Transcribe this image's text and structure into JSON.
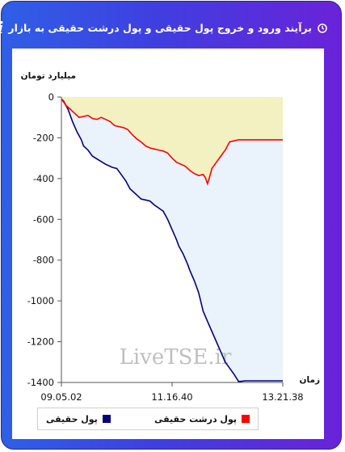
{
  "header": {
    "title": "برآیند ورود و خروج پول حقیقی و پول درشت حقیقی به بازار",
    "info_icon": "i"
  },
  "chart_data": {
    "type": "area",
    "ylabel": "میلیارد تومان",
    "xlabel": "زمان",
    "watermark": "LiveTSE.ir",
    "ylim": [
      -1400,
      0
    ],
    "y_ticks": [
      0,
      -200,
      -400,
      -600,
      -800,
      -1000,
      -1200,
      -1400
    ],
    "x_ticks": [
      "09.05.02",
      "11.16.40",
      "13.21.38"
    ],
    "grid": false,
    "legend_position": "bottom",
    "series": [
      {
        "name": "پول حقیقی",
        "color": "#000080",
        "fill": "#eaf3fb",
        "x": [
          0,
          0.01,
          0.03,
          0.05,
          0.07,
          0.09,
          0.1,
          0.12,
          0.14,
          0.17,
          0.2,
          0.23,
          0.25,
          0.27,
          0.29,
          0.31,
          0.33,
          0.35,
          0.36,
          0.38,
          0.4,
          0.42,
          0.44,
          0.46,
          0.48,
          0.5,
          0.52,
          0.53,
          0.55,
          0.57,
          0.58,
          0.6,
          0.62,
          0.64,
          0.66,
          0.68,
          0.7,
          0.72,
          0.74,
          0.76,
          0.78,
          0.8,
          0.81,
          0.83,
          0.85,
          0.87,
          0.9,
          0.93,
          0.96,
          1
        ],
        "values": [
          -10,
          -20,
          -60,
          -120,
          -170,
          -210,
          -240,
          -260,
          -290,
          -310,
          -330,
          -345,
          -350,
          -380,
          -410,
          -450,
          -470,
          -490,
          -500,
          -505,
          -510,
          -530,
          -545,
          -560,
          -600,
          -650,
          -700,
          -730,
          -770,
          -820,
          -850,
          -900,
          -960,
          -1050,
          -1100,
          -1150,
          -1200,
          -1250,
          -1300,
          -1330,
          -1360,
          -1395,
          -1395,
          -1392,
          -1392,
          -1392,
          -1392,
          -1392,
          -1392,
          -1392
        ]
      },
      {
        "name": "پول درشت حقیقی",
        "color": "#ff0000",
        "fill": "#f3f0c2",
        "x": [
          0,
          0.02,
          0.04,
          0.06,
          0.08,
          0.1,
          0.12,
          0.14,
          0.16,
          0.18,
          0.2,
          0.22,
          0.24,
          0.26,
          0.28,
          0.3,
          0.32,
          0.34,
          0.36,
          0.38,
          0.4,
          0.42,
          0.44,
          0.46,
          0.48,
          0.5,
          0.52,
          0.54,
          0.56,
          0.58,
          0.6,
          0.62,
          0.64,
          0.65,
          0.66,
          0.67,
          0.68,
          0.7,
          0.72,
          0.74,
          0.76,
          0.78,
          0.8,
          0.85,
          0.9,
          0.95,
          1
        ],
        "values": [
          -10,
          -40,
          -60,
          -80,
          -100,
          -95,
          -90,
          -105,
          -110,
          -100,
          -110,
          -120,
          -140,
          -145,
          -150,
          -160,
          -185,
          -205,
          -220,
          -240,
          -250,
          -255,
          -260,
          -265,
          -275,
          -300,
          -320,
          -330,
          -340,
          -360,
          -375,
          -385,
          -380,
          -395,
          -425,
          -390,
          -350,
          -320,
          -290,
          -260,
          -220,
          -215,
          -210,
          -210,
          -210,
          -210,
          -210
        ]
      }
    ]
  },
  "legend": {
    "items": [
      {
        "label": "پول حقیقی",
        "color": "#000080"
      },
      {
        "label": "پول درشت حقیقی",
        "color": "#ff0000"
      }
    ]
  }
}
